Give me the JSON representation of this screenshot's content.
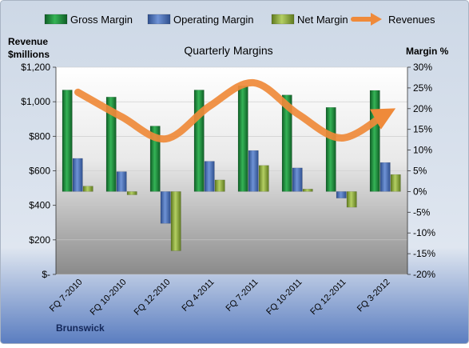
{
  "chart_data": {
    "type": "bar",
    "title": "Quarterly Margins",
    "brand": "Brunswick",
    "left_axis": {
      "label_line1": "Revenue",
      "label_line2": "$millions",
      "min": 0,
      "max": 1200,
      "ticks": [
        0,
        200,
        400,
        600,
        800,
        1000,
        1200
      ],
      "tick_labels": [
        "$-",
        "$200",
        "$400",
        "$600",
        "$800",
        "$1,000",
        "$1,200"
      ]
    },
    "right_axis": {
      "label": "Margin %",
      "min": -20,
      "max": 30,
      "ticks": [
        -20,
        -15,
        -10,
        -5,
        0,
        5,
        10,
        15,
        20,
        25,
        30
      ],
      "tick_labels": [
        "-20%",
        "-15%",
        "-10%",
        "-5%",
        "0%",
        "5%",
        "10%",
        "15%",
        "20%",
        "25%",
        "30%"
      ]
    },
    "categories": [
      "FQ 7-2010",
      "FQ 10-2010",
      "FQ 12-2010",
      "FQ 4-2011",
      "FQ 7-2011",
      "FQ 10-2011",
      "FQ 12-2011",
      "FQ 3-2012"
    ],
    "series": [
      {
        "name": "Gross Margin",
        "axis": "right",
        "type": "bar",
        "values": [
          24.5,
          22.8,
          15.8,
          24.5,
          25.5,
          23.3,
          20.3,
          24.4
        ]
      },
      {
        "name": "Operating Margin",
        "axis": "right",
        "type": "bar",
        "values": [
          8.0,
          4.8,
          -7.7,
          7.3,
          9.9,
          5.7,
          -1.6,
          7.0
        ]
      },
      {
        "name": "Net Margin",
        "axis": "right",
        "type": "bar",
        "values": [
          1.3,
          -0.8,
          -14.3,
          2.8,
          6.3,
          0.6,
          -3.8,
          4.1
        ]
      },
      {
        "name": "Revenues",
        "axis": "left",
        "type": "line",
        "values": [
          1055,
          912,
          785,
          975,
          1110,
          930,
          790,
          930
        ]
      }
    ],
    "legend_position": "top",
    "colors": {
      "gross": "#1f8a3c",
      "operating": "#4a6fb5",
      "net": "#8fae3a",
      "revenue": "#ef8a3a",
      "bg_top": "#cdd8e6",
      "bg_bottom": "#5a7dc0",
      "plot_top": "#ffffff",
      "plot_bottom": "#8a8a8a"
    }
  }
}
